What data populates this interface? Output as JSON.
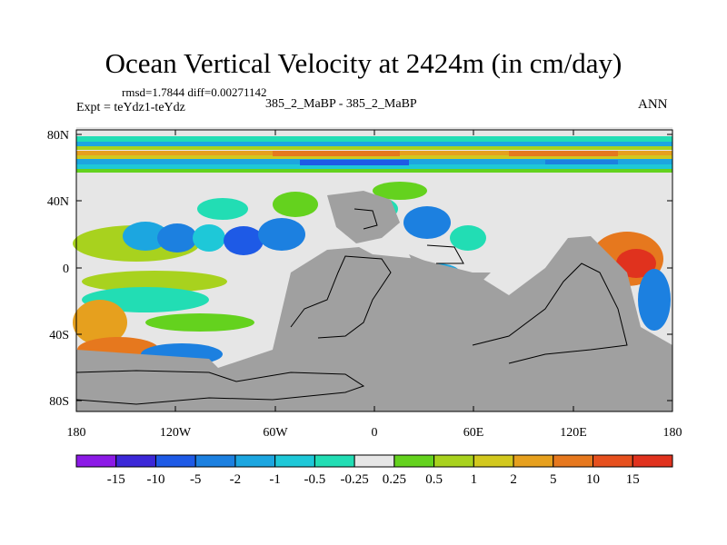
{
  "title": "Ocean Vertical Velocity at 2424m (in cm/day)",
  "stats": {
    "rmsd_label": "rmsd=",
    "rmsd_value": "1.7844",
    "diff_label": "diff=",
    "diff_value": "0.00271142"
  },
  "experiment": "Expt = teYdz1-teYdz",
  "cases": "385_2_MaBP - 385_2_MaBP",
  "season": "ANN",
  "y_ticks": [
    "80N",
    "40N",
    "0",
    "40S",
    "80S"
  ],
  "x_ticks": [
    "180",
    "120W",
    "60W",
    "0",
    "60E",
    "120E",
    "180"
  ],
  "colorbar": {
    "labels": [
      "-15",
      "-10",
      "-5",
      "-2",
      "-1",
      "-0.5",
      "-0.25",
      "0.25",
      "0.5",
      "1",
      "2",
      "5",
      "10",
      "15"
    ],
    "colors": [
      "#8c1ae6",
      "#3c28d8",
      "#1e5ae6",
      "#1c80e0",
      "#1ca6e0",
      "#1ec8d8",
      "#22ddb4",
      "#e6e6e6",
      "#64d21e",
      "#a8d21e",
      "#d2c81e",
      "#e6a01e",
      "#e6781e",
      "#e6501e",
      "#e0321e"
    ]
  },
  "colors": {
    "land": "#a0a0a0",
    "neutral": "#e6e6e6",
    "coast": "#000000"
  }
}
